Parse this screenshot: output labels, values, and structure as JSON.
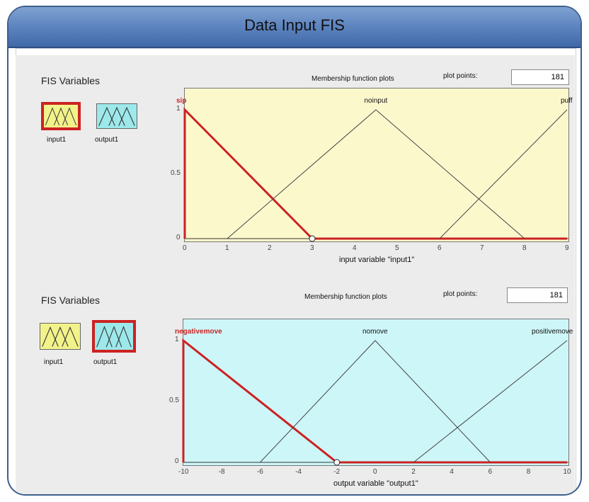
{
  "window": {
    "title": "Data Input FIS"
  },
  "panels": [
    {
      "fis_label": "FIS Variables",
      "mf_plot_title": "Membership function plots",
      "plot_points_label": "plot points:",
      "plot_points_value": "181",
      "variables": [
        {
          "label": "input1",
          "selected": true,
          "color": "#f2f28a"
        },
        {
          "label": "output1",
          "selected": false,
          "color": "#9de8ea"
        }
      ],
      "plot": {
        "background": "#fbf8cc",
        "x_label": "input variable \"input1\"",
        "x_ticks": [
          "0",
          "1",
          "2",
          "3",
          "4",
          "5",
          "6",
          "7",
          "8",
          "9"
        ],
        "y_ticks": [
          "0",
          "0.5",
          "1"
        ],
        "mfs": [
          {
            "label": "sip",
            "active": true
          },
          {
            "label": "noinput",
            "active": false
          },
          {
            "label": "puff",
            "active": false
          }
        ]
      }
    },
    {
      "fis_label": "FIS Variables",
      "mf_plot_title": "Membership function plots",
      "plot_points_label": "plot points:",
      "plot_points_value": "181",
      "variables": [
        {
          "label": "input1",
          "selected": false,
          "color": "#f2f28a"
        },
        {
          "label": "output1",
          "selected": true,
          "color": "#9de8ea"
        }
      ],
      "plot": {
        "background": "#cdf6f8",
        "x_label": "output variable \"output1\"",
        "x_ticks": [
          "-10",
          "-8",
          "-6",
          "-4",
          "-2",
          "0",
          "2",
          "4",
          "6",
          "8",
          "10"
        ],
        "y_ticks": [
          "0",
          "0.5",
          "1"
        ],
        "mfs": [
          {
            "label": "negativemove",
            "active": true
          },
          {
            "label": "nomove",
            "active": false
          },
          {
            "label": "positivemove",
            "active": false
          }
        ]
      }
    }
  ],
  "chart_data": [
    {
      "type": "line",
      "xlabel": "input variable \"input1\"",
      "xlim": [
        0,
        9
      ],
      "ylim": [
        0,
        1
      ],
      "series": [
        {
          "name": "sip",
          "x": [
            0,
            0,
            3
          ],
          "y": [
            0,
            1,
            0
          ]
        },
        {
          "name": "noinput",
          "x": [
            1,
            4.5,
            8
          ],
          "y": [
            0,
            1,
            0
          ]
        },
        {
          "name": "puff",
          "x": [
            6,
            9
          ],
          "y": [
            0,
            1
          ]
        }
      ]
    },
    {
      "type": "line",
      "xlabel": "output variable \"output1\"",
      "xlim": [
        -10,
        10
      ],
      "ylim": [
        0,
        1
      ],
      "series": [
        {
          "name": "negativemove",
          "x": [
            -10,
            -10,
            -2
          ],
          "y": [
            0,
            1,
            0
          ]
        },
        {
          "name": "nomove",
          "x": [
            -6,
            0,
            6
          ],
          "y": [
            0,
            1,
            0
          ]
        },
        {
          "name": "positivemove",
          "x": [
            2,
            10
          ],
          "y": [
            0,
            1
          ]
        }
      ]
    }
  ]
}
